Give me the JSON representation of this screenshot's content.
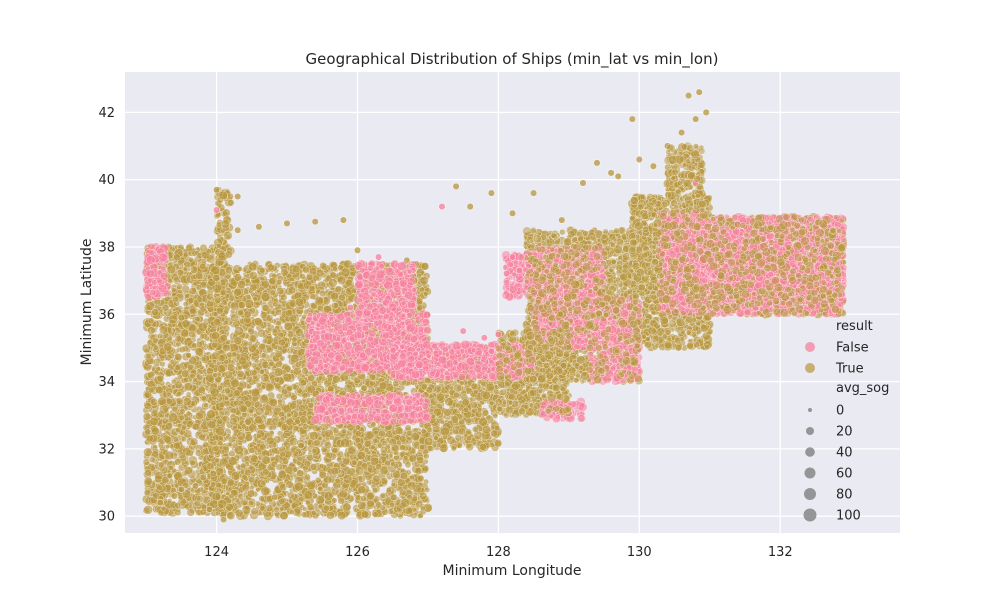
{
  "chart_data": {
    "type": "scatter",
    "title": "Geographical Distribution of Ships (min_lat vs min_lon)",
    "xlabel": "Minimum Longitude",
    "ylabel": "Minimum Latitude",
    "xlim": [
      122.7,
      133.7
    ],
    "ylim": [
      29.5,
      43.2
    ],
    "xticks": [
      124,
      126,
      128,
      130,
      132
    ],
    "yticks": [
      30,
      32,
      34,
      36,
      38,
      40,
      42
    ],
    "grid": true,
    "background": "#eaeaf2",
    "legend": {
      "placement": "right",
      "hue_title": "result",
      "hue_entries": [
        {
          "label": "False",
          "color": "#f28aa4"
        },
        {
          "label": "True",
          "color": "#bf9f50"
        }
      ],
      "size_title": "avg_sog",
      "size_entries": [
        {
          "label": "0",
          "value": 0
        },
        {
          "label": "20",
          "value": 20
        },
        {
          "label": "40",
          "value": 40
        },
        {
          "label": "60",
          "value": 60
        },
        {
          "label": "80",
          "value": 80
        },
        {
          "label": "100",
          "value": 100
        }
      ]
    },
    "series": [
      {
        "name": "True",
        "color": "#b8963e",
        "regions": [
          {
            "x": [
              123.0,
              124.1
            ],
            "y": [
              30.1,
              38.0
            ]
          },
          {
            "x": [
              123.9,
              127.0
            ],
            "y": [
              30.0,
              37.5
            ]
          },
          {
            "x": [
              124.0,
              124.2
            ],
            "y": [
              37.5,
              39.8
            ]
          },
          {
            "x": [
              126.9,
              128.0
            ],
            "y": [
              32.0,
              35.0
            ]
          },
          {
            "x": [
              128.0,
              129.0
            ],
            "y": [
              33.0,
              35.5
            ]
          },
          {
            "x": [
              128.4,
              130.0
            ],
            "y": [
              34.0,
              38.5
            ]
          },
          {
            "x": [
              129.9,
              131.0
            ],
            "y": [
              35.0,
              39.5
            ]
          },
          {
            "x": [
              130.4,
              130.9
            ],
            "y": [
              39.5,
              41.0
            ]
          },
          {
            "x": [
              131.0,
              132.9
            ],
            "y": [
              36.0,
              38.9
            ]
          }
        ],
        "points": [
          [
            124.3,
            38.5
          ],
          [
            124.6,
            38.6
          ],
          [
            125.0,
            38.7
          ],
          [
            125.4,
            38.75
          ],
          [
            125.8,
            38.8
          ],
          [
            126.0,
            37.9
          ],
          [
            127.4,
            39.8
          ],
          [
            127.6,
            39.2
          ],
          [
            127.9,
            39.6
          ],
          [
            128.2,
            39.0
          ],
          [
            128.5,
            39.6
          ],
          [
            128.9,
            38.8
          ],
          [
            129.2,
            39.9
          ],
          [
            129.4,
            40.5
          ],
          [
            129.6,
            40.2
          ],
          [
            129.9,
            41.8
          ],
          [
            130.0,
            40.6
          ],
          [
            130.2,
            40.4
          ],
          [
            130.4,
            41.0
          ],
          [
            130.6,
            41.4
          ],
          [
            130.7,
            42.5
          ],
          [
            130.85,
            42.6
          ],
          [
            130.95,
            42.0
          ],
          [
            130.8,
            41.8
          ],
          [
            129.7,
            40.1
          ],
          [
            123.2,
            30.4
          ],
          [
            123.4,
            30.6
          ],
          [
            123.5,
            30.8
          ],
          [
            123.7,
            30.9
          ],
          [
            123.9,
            30.2
          ],
          [
            124.1,
            29.9
          ],
          [
            125.2,
            32.1
          ],
          [
            124.0,
            39.7
          ],
          [
            124.3,
            39.5
          ],
          [
            126.7,
            37.6
          ],
          [
            126.4,
            37.3
          ],
          [
            128.8,
            38.3
          ],
          [
            130.1,
            39.3
          ],
          [
            130.5,
            40.1
          ],
          [
            130.8,
            40.6
          ]
        ]
      },
      {
        "name": "False",
        "color": "#f5809c",
        "regions": [
          {
            "x": [
              123.0,
              123.3
            ],
            "y": [
              36.5,
              38.0
            ]
          },
          {
            "x": [
              125.3,
              127.0
            ],
            "y": [
              34.3,
              36.0
            ]
          },
          {
            "x": [
              126.0,
              126.8
            ],
            "y": [
              35.8,
              37.5
            ]
          },
          {
            "x": [
              125.4,
              127.0
            ],
            "y": [
              32.8,
              33.6
            ]
          },
          {
            "x": [
              126.5,
              128.5
            ],
            "y": [
              34.1,
              35.1
            ]
          },
          {
            "x": [
              128.5,
              129.5
            ],
            "y": [
              35.0,
              38.0
            ]
          },
          {
            "x": [
              129.3,
              130.0
            ],
            "y": [
              34.0,
              36.5
            ]
          },
          {
            "x": [
              130.3,
              131.0
            ],
            "y": [
              36.0,
              39.0
            ]
          },
          {
            "x": [
              131.0,
              132.9
            ],
            "y": [
              36.0,
              38.9
            ]
          },
          {
            "x": [
              128.1,
              128.6
            ],
            "y": [
              36.5,
              37.8
            ]
          },
          {
            "x": [
              128.6,
              129.2
            ],
            "y": [
              32.9,
              33.4
            ]
          }
        ],
        "points": [
          [
            127.5,
            35.5
          ],
          [
            127.8,
            35.3
          ],
          [
            128.0,
            35.4
          ],
          [
            127.9,
            34.9
          ],
          [
            128.2,
            34.8
          ],
          [
            128.3,
            37.3
          ],
          [
            128.2,
            37.7
          ],
          [
            124.0,
            39.1
          ],
          [
            125.9,
            36.2
          ],
          [
            126.3,
            37.7
          ],
          [
            127.2,
            39.2
          ],
          [
            130.8,
            39.9
          ]
        ]
      }
    ]
  }
}
